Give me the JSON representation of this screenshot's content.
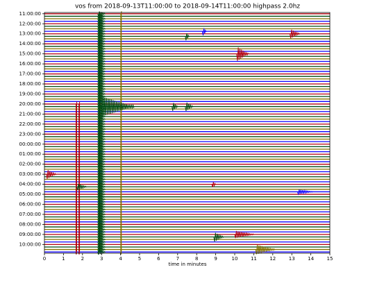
{
  "chart_data": {
    "type": "helicorder",
    "title": "vos from 2018-09-13T11:00:00 to 2018-09-14T11:00:00 highpass 2.0hz",
    "xlabel": "time in minutes",
    "xlim": [
      0,
      15
    ],
    "xticks": [
      0,
      1,
      2,
      3,
      4,
      5,
      6,
      7,
      8,
      9,
      10,
      11,
      12,
      13,
      14,
      15
    ],
    "categories": [
      "11:00:00",
      "12:00:00",
      "13:00:00",
      "14:00:00",
      "15:00:00",
      "16:00:00",
      "17:00:00",
      "18:00:00",
      "19:00:00",
      "20:00:00",
      "21:00:00",
      "22:00:00",
      "23:00:00",
      "00:00:00",
      "01:00:00",
      "02:00:00",
      "03:00:00",
      "04:00:00",
      "05:00:00",
      "06:00:00",
      "07:00:00",
      "08:00:00",
      "09:00:00",
      "10:00:00"
    ],
    "colors": [
      "#B2000F",
      "#004C12",
      "#847200",
      "#0E01FF"
    ],
    "events": [
      {
        "trace": 0,
        "trace_end": 95,
        "minute": 2.8,
        "duration": 0.4,
        "amplitude": 1.2,
        "color": "#004C12"
      },
      {
        "trace": 0,
        "trace_end": 95,
        "minute": 4.0,
        "duration": 0.05,
        "amplitude": 1,
        "color": "#847200"
      },
      {
        "trace": 36,
        "trace_end": 95,
        "minute": 1.65,
        "duration": 0.05,
        "amplitude": 1,
        "color": "#B2000F"
      },
      {
        "trace": 36,
        "trace_end": 95,
        "minute": 1.8,
        "duration": 0.05,
        "amplitude": 1,
        "color": "#B2000F"
      },
      {
        "trace": 37,
        "minute": 3.0,
        "duration": 1.7,
        "amplitude": 4
      },
      {
        "trace": 37,
        "minute": 6.7,
        "duration": 0.3,
        "amplitude": 2
      },
      {
        "trace": 37,
        "minute": 7.4,
        "duration": 0.4,
        "amplitude": 2
      },
      {
        "trace": 9,
        "minute": 7.4,
        "duration": 0.2,
        "amplitude": 2
      },
      {
        "trace": 7,
        "minute": 8.3,
        "duration": 0.2,
        "amplitude": 2
      },
      {
        "trace": 16,
        "minute": 10.1,
        "duration": 0.6,
        "amplitude": 3
      },
      {
        "trace": 8,
        "minute": 12.9,
        "duration": 0.5,
        "amplitude": 2
      },
      {
        "trace": 64,
        "minute": 0.1,
        "duration": 0.5,
        "amplitude": 2
      },
      {
        "trace": 69,
        "minute": 1.7,
        "duration": 0.5,
        "amplitude": 1.5
      },
      {
        "trace": 71,
        "minute": 13.3,
        "duration": 0.8,
        "amplitude": 1
      },
      {
        "trace": 68,
        "minute": 8.8,
        "duration": 0.2,
        "amplitude": 1.5
      },
      {
        "trace": 89,
        "minute": 8.9,
        "duration": 0.5,
        "amplitude": 2
      },
      {
        "trace": 88,
        "minute": 10.0,
        "duration": 1.0,
        "amplitude": 1.5
      },
      {
        "trace": 94,
        "minute": 11.1,
        "duration": 1.0,
        "amplitude": 2
      }
    ]
  }
}
